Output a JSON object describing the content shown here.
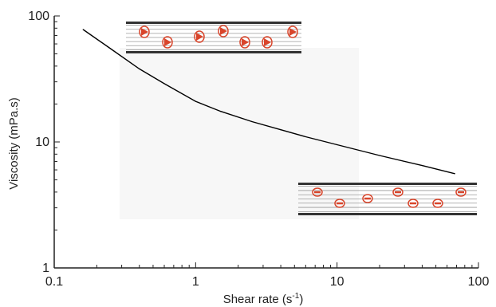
{
  "chart_data": {
    "type": "line",
    "title": "",
    "xlabel": "Shear rate (s",
    "xlabel_superscript": "-1",
    "xlabel_suffix": ")",
    "ylabel": "Viscosity (mPa.s)",
    "xscale": "log",
    "yscale": "log",
    "xlim": [
      0.1,
      100
    ],
    "ylim": [
      1,
      100
    ],
    "x_tick_labels": [
      "0.1",
      "1",
      "10",
      "100"
    ],
    "x_tick_values": [
      0.1,
      1,
      10,
      100
    ],
    "y_tick_labels": [
      "1",
      "10",
      "100"
    ],
    "y_tick_values": [
      1,
      10,
      100
    ],
    "grid": false,
    "series": [
      {
        "x": [
          0.16,
          0.25,
          0.4,
          0.6,
          1.0,
          1.5,
          2.5,
          4,
          6,
          10,
          20,
          40,
          68
        ],
        "y": [
          78,
          55,
          38,
          29,
          21,
          17.5,
          14.5,
          12.5,
          11,
          9.5,
          7.8,
          6.5,
          5.6
        ]
      }
    ],
    "colors": {
      "line": "#000000",
      "axis": "#222222",
      "cell": "#d9452b",
      "plate": "#333333",
      "flow_line": "#9a9a9a",
      "background_panel": "#f7f7f7"
    },
    "insets": [
      {
        "meaning": "aggregated red blood cells at low shear",
        "icon": "rbc-stacked-cells"
      },
      {
        "meaning": "dispersed red blood cells at high shear",
        "icon": "rbc-dispersed-cells"
      }
    ]
  }
}
